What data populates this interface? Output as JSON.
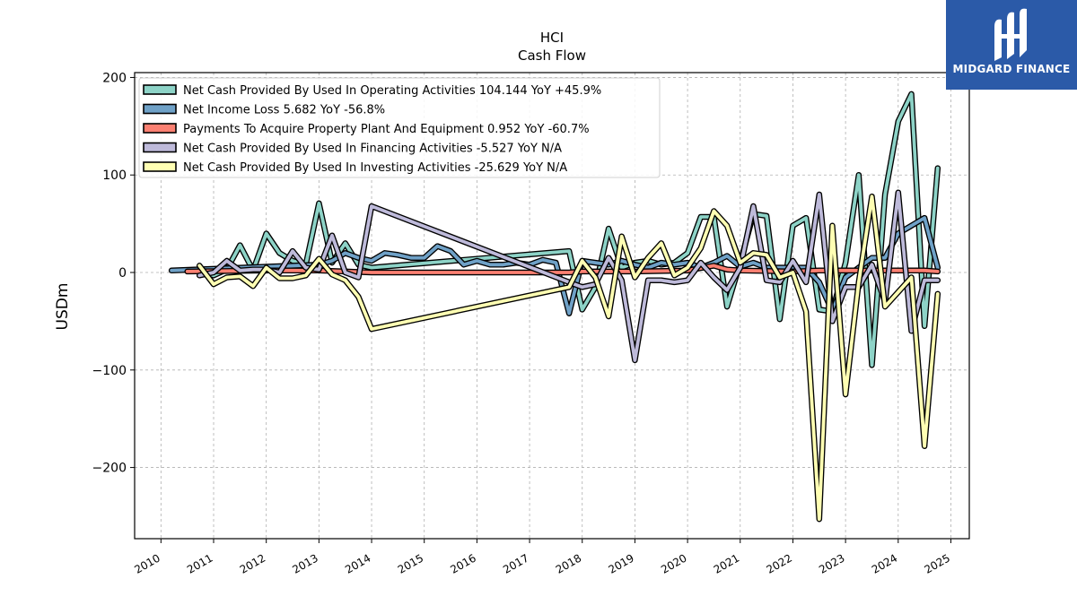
{
  "chart_data": {
    "type": "line",
    "title": "HCI",
    "subtitle": "Cash Flow",
    "ylabel": "USDm",
    "xlabel": "",
    "xlim": [
      2009.5,
      2025.35
    ],
    "ylim": [
      -273,
      205
    ],
    "yticks": [
      -200,
      -100,
      0,
      100,
      200
    ],
    "yticklabels": [
      "−200",
      "−100",
      "0",
      "100",
      "200"
    ],
    "xticks": [
      2010,
      2011,
      2012,
      2013,
      2014,
      2015,
      2016,
      2017,
      2018,
      2019,
      2020,
      2021,
      2022,
      2023,
      2024,
      2025
    ],
    "xticklabels": [
      "2010",
      "2011",
      "2012",
      "2013",
      "2014",
      "2015",
      "2016",
      "2017",
      "2018",
      "2019",
      "2020",
      "2021",
      "2022",
      "2023",
      "2024",
      "2025"
    ],
    "grid": true,
    "legend_position": "top-left",
    "series": [
      {
        "name": "Net Cash Provided By Used In Operating Activities",
        "legend": "Net Cash Provided By Used In Operating Activities  104.144 YoY +45.9%",
        "color": "#8dd3c7",
        "x": [
          2010.73,
          2011.0,
          2011.25,
          2011.5,
          2011.75,
          2012.0,
          2012.25,
          2012.5,
          2012.75,
          2013.0,
          2013.25,
          2013.5,
          2013.75,
          2014.0,
          2017.75,
          2018.0,
          2018.25,
          2018.5,
          2018.75,
          2019.0,
          2019.25,
          2019.5,
          2019.75,
          2020.0,
          2020.25,
          2020.5,
          2020.75,
          2021.0,
          2021.25,
          2021.5,
          2021.75,
          2022.0,
          2022.25,
          2022.5,
          2022.75,
          2023.0,
          2023.25,
          2023.5,
          2023.75,
          2024.0,
          2024.25,
          2024.5,
          2024.75
        ],
        "y": [
          2,
          -3,
          3,
          28,
          2,
          40,
          20,
          12,
          8,
          71,
          10,
          30,
          8,
          5,
          22,
          -38,
          -15,
          45,
          5,
          10,
          12,
          8,
          10,
          20,
          57,
          57,
          -35,
          10,
          60,
          58,
          -48,
          48,
          56,
          -38,
          -40,
          10,
          100,
          -95,
          80,
          155,
          183,
          -55,
          107
        ]
      },
      {
        "name": "Net Income Loss",
        "legend": "Net Income Loss  5.682 YoY -56.8%",
        "color": "#6fa1c7",
        "x": [
          2010.2,
          2013.0,
          2013.25,
          2013.5,
          2013.75,
          2014.0,
          2014.25,
          2014.5,
          2014.75,
          2015.0,
          2015.25,
          2015.5,
          2015.75,
          2016.0,
          2016.25,
          2016.5,
          2016.75,
          2017.0,
          2017.25,
          2017.5,
          2017.75,
          2018.0,
          2018.25,
          2018.5,
          2018.75,
          2019.0,
          2019.25,
          2019.5,
          2019.75,
          2020.0,
          2020.25,
          2020.5,
          2020.75,
          2021.0,
          2021.25,
          2021.5,
          2021.75,
          2022.0,
          2022.25,
          2022.5,
          2022.75,
          2023.0,
          2023.25,
          2023.5,
          2023.75,
          2024.0,
          2024.25,
          2024.5,
          2024.75
        ],
        "y": [
          2,
          8,
          12,
          20,
          15,
          12,
          20,
          18,
          15,
          15,
          27,
          22,
          8,
          12,
          8,
          8,
          10,
          8,
          13,
          10,
          -42,
          12,
          10,
          8,
          12,
          8,
          5,
          10,
          8,
          10,
          5,
          10,
          17,
          6,
          10,
          5,
          5,
          5,
          5,
          -10,
          -40,
          -5,
          5,
          15,
          15,
          40,
          48,
          56,
          5
        ]
      },
      {
        "name": "Payments To Acquire Property Plant And Equipment",
        "legend": "Payments To Acquire Property Plant And Equipment  0.952 YoY -60.7%",
        "color": "#fb8072",
        "x": [
          2010.5,
          2012.0,
          2013.0,
          2013.5,
          2014.0,
          2015.0,
          2016.0,
          2017.0,
          2017.75,
          2018.0,
          2019.0,
          2020.0,
          2020.5,
          2020.75,
          2021.0,
          2022.0,
          2022.5,
          2023.0,
          2023.5,
          2024.0,
          2024.5,
          2024.75
        ],
        "y": [
          1,
          2,
          2,
          1,
          0,
          0,
          0,
          0,
          0,
          1,
          1,
          2,
          7,
          3,
          2,
          1,
          2,
          2,
          2,
          2,
          2,
          1
        ]
      },
      {
        "name": "Net Cash Provided By Used In Financing Activities",
        "legend": "Net Cash Provided By Used In Financing Activities  -5.527 YoY N/A",
        "color": "#bebada",
        "x": [
          2010.73,
          2011.0,
          2011.25,
          2011.5,
          2011.75,
          2012.0,
          2012.25,
          2012.5,
          2012.75,
          2013.0,
          2013.25,
          2013.5,
          2013.75,
          2014.0,
          2017.75,
          2018.0,
          2018.25,
          2018.5,
          2018.75,
          2019.0,
          2019.25,
          2019.5,
          2019.75,
          2020.0,
          2020.25,
          2020.5,
          2020.75,
          2021.0,
          2021.25,
          2021.5,
          2021.75,
          2022.0,
          2022.25,
          2022.5,
          2022.75,
          2023.0,
          2023.25,
          2023.5,
          2023.75,
          2024.0,
          2024.25,
          2024.5,
          2024.75
        ],
        "y": [
          -3,
          0,
          12,
          2,
          3,
          3,
          0,
          22,
          5,
          3,
          38,
          0,
          -5,
          68,
          -10,
          -15,
          -12,
          15,
          -8,
          -90,
          -8,
          -8,
          -10,
          -8,
          10,
          -5,
          -18,
          5,
          68,
          -8,
          -10,
          12,
          -10,
          80,
          -50,
          -15,
          -15,
          8,
          -30,
          82,
          -60,
          -8,
          -8
        ]
      },
      {
        "name": "Net Cash Provided By Used In Investing Activities",
        "legend": "Net Cash Provided By Used In Investing Activities  -25.629 YoY N/A",
        "color": "#ffffb3",
        "x": [
          2010.73,
          2011.0,
          2011.25,
          2011.5,
          2011.75,
          2012.0,
          2012.25,
          2012.5,
          2012.75,
          2013.0,
          2013.25,
          2013.5,
          2013.75,
          2014.0,
          2017.75,
          2018.0,
          2018.25,
          2018.5,
          2018.75,
          2019.0,
          2019.25,
          2019.5,
          2019.75,
          2020.0,
          2020.25,
          2020.5,
          2020.75,
          2021.0,
          2021.25,
          2021.5,
          2021.75,
          2022.0,
          2022.25,
          2022.5,
          2022.75,
          2023.0,
          2023.25,
          2023.5,
          2023.75,
          2024.0,
          2024.25,
          2024.5,
          2024.75
        ],
        "y": [
          7,
          -12,
          -5,
          -4,
          -14,
          5,
          -6,
          -6,
          -3,
          14,
          -2,
          -8,
          -25,
          -58,
          -15,
          12,
          -5,
          -45,
          37,
          -5,
          15,
          30,
          -3,
          5,
          25,
          63,
          48,
          10,
          20,
          18,
          -5,
          0,
          -40,
          -253,
          48,
          -125,
          -10,
          78,
          -35,
          -20,
          -5,
          -178,
          -22
        ]
      }
    ]
  },
  "logo": {
    "name": "MIDGARD FINANCE",
    "bg_color": "#2b5aa8"
  }
}
